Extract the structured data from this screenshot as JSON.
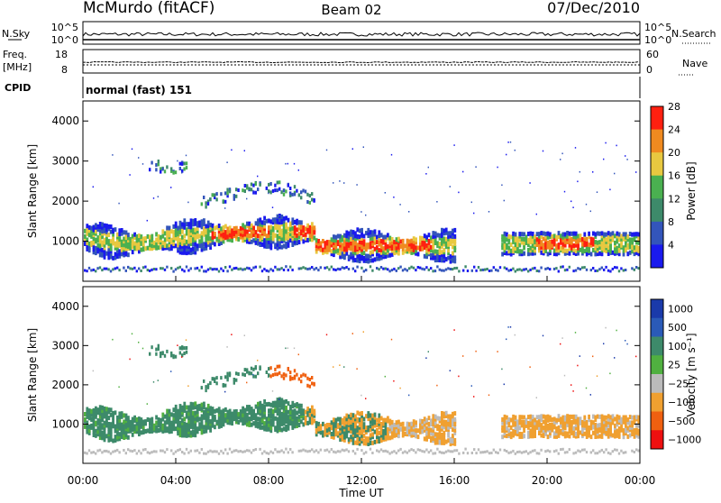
{
  "header": {
    "station": "McMurdo (fitACF)",
    "beam": "Beam 02",
    "date": "07/Dec/2010"
  },
  "nsky_panel": {
    "left_label": "N.Sky",
    "right_label": "N.Search",
    "tick_top": "10^5",
    "tick_bottom": "10^0"
  },
  "freq_panel": {
    "label_line1": "Freq.",
    "label_line2": "[MHz]",
    "left_ticks": [
      "18",
      "8"
    ],
    "right_label": "Nave",
    "right_ticks": [
      "60",
      "0"
    ]
  },
  "cpid_panel": {
    "label": "CPID",
    "text": "normal (fast) 151"
  },
  "chart_data": [
    {
      "type": "heatmap",
      "quantity": "Power",
      "xlabel": "",
      "ylabel": "Slant Range [km]",
      "yticks": [
        "1000",
        "2000",
        "3000",
        "4000"
      ],
      "ylim": [
        0,
        4500
      ],
      "xlim": [
        0,
        24
      ],
      "colorbar": {
        "label": "Power [dB]",
        "tick_labels": [
          "4",
          "8",
          "12",
          "16",
          "20",
          "24",
          "28"
        ],
        "colors": [
          "#1a1aee",
          "#3355bb",
          "#3d8a6a",
          "#4ab050",
          "#e8c840",
          "#f08a20",
          "#ff2010"
        ]
      }
    },
    {
      "type": "heatmap",
      "quantity": "Velocity",
      "xlabel": "Time UT",
      "ylabel": "Slant Range [km]",
      "xticks": [
        "00:00",
        "04:00",
        "08:00",
        "12:00",
        "16:00",
        "20:00",
        "00:00"
      ],
      "yticks": [
        "1000",
        "2000",
        "3000",
        "4000"
      ],
      "ylim": [
        0,
        4500
      ],
      "xlim": [
        0,
        24
      ],
      "colorbar": {
        "label": "Velocity [m s⁻¹]",
        "tick_labels": [
          "1000",
          "500",
          "100",
          "25",
          "−25",
          "−100",
          "−500",
          "−1000"
        ],
        "colors": [
          "#1a3aaa",
          "#2a5ab8",
          "#3d8a6a",
          "#50b040",
          "#bbbbbb",
          "#f0a030",
          "#f06010",
          "#ee1010"
        ]
      }
    }
  ]
}
